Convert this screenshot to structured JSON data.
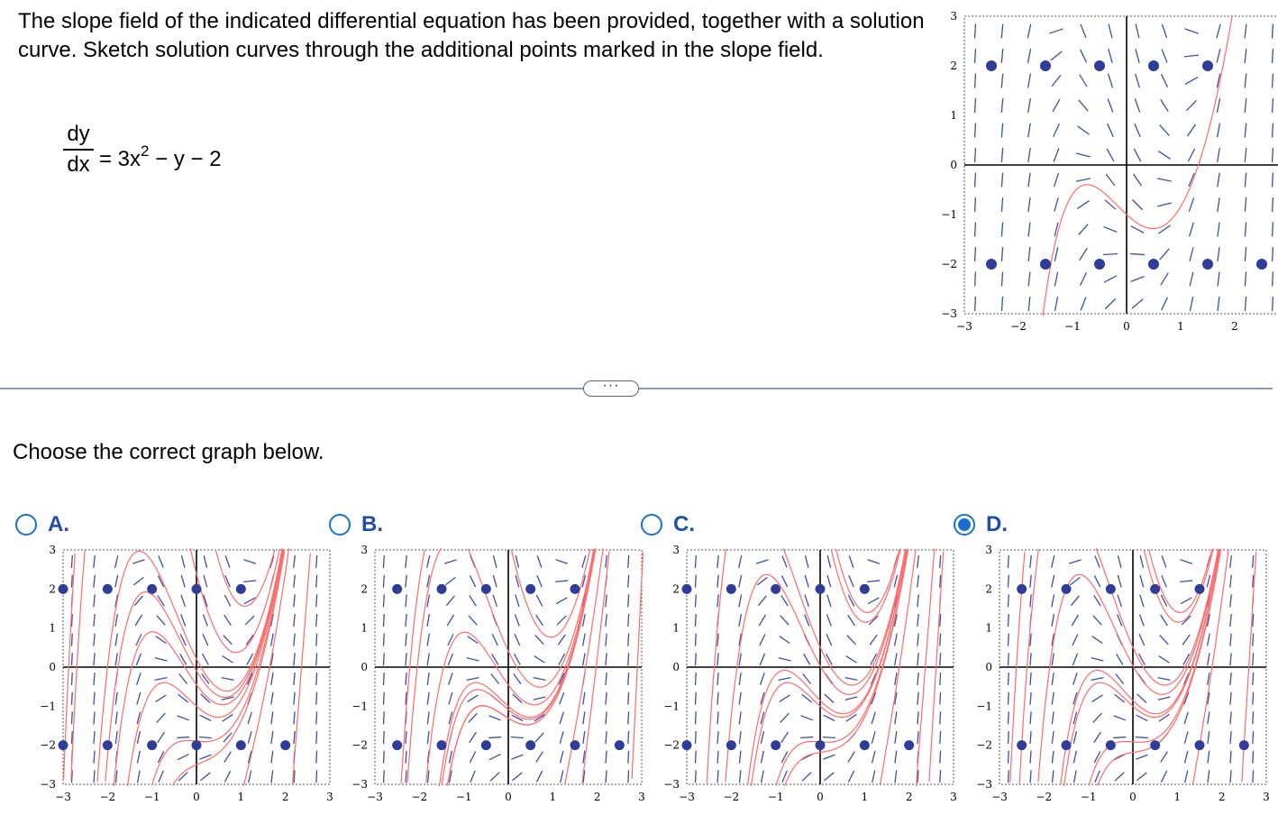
{
  "question": {
    "text": "The slope field of the indicated differential equation has been provided, together with a solution curve. Sketch solution curves through the additional points marked in the slope field.",
    "equation_num": "dy",
    "equation_den": "dx",
    "equation_rhs_pre": "= 3x",
    "equation_exp": "2",
    "equation_rhs_post": " − y − 2"
  },
  "axis_ticks": [
    "−3",
    "−2",
    "−1",
    "0",
    "1",
    "2",
    "3"
  ],
  "more_button": "···",
  "prompt": "Choose the correct graph below.",
  "options": [
    {
      "label": "A.",
      "selected": false
    },
    {
      "label": "B.",
      "selected": false
    },
    {
      "label": "C.",
      "selected": false
    },
    {
      "label": "D.",
      "selected": true
    }
  ],
  "colors": {
    "slope": "#3d4fa6",
    "curve": "#ff6b6b",
    "point": "#2f3c98",
    "accent": "#1a73c9"
  }
}
